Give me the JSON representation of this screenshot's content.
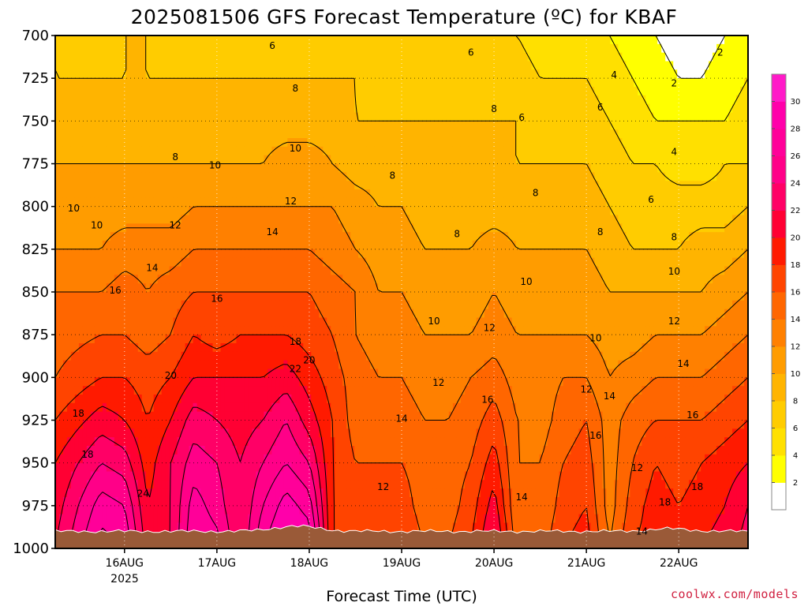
{
  "chart_data": {
    "type": "heatmap",
    "title": "2025081506 GFS Forecast Temperature (ºC) for KBAF",
    "xlabel": "Forecast Time (UTC)",
    "ylabel": "",
    "credit": "coolwx.com/models",
    "x_ticks": [
      "16AUG",
      "17AUG",
      "18AUG",
      "19AUG",
      "20AUG",
      "21AUG",
      "22AUG"
    ],
    "x_tick_year": "2025",
    "y_ticks": [
      "700",
      "725",
      "750",
      "775",
      "800",
      "825",
      "850",
      "875",
      "900",
      "925",
      "950",
      "975",
      "1000"
    ],
    "y_range_hpa": [
      1000,
      700
    ],
    "x_range_days": [
      15.25,
      22.75
    ],
    "grid": true,
    "colorbar_ticks": [
      "2",
      "4",
      "6",
      "8",
      "10",
      "12",
      "14",
      "16",
      "18",
      "20",
      "22",
      "24",
      "26",
      "28",
      "30"
    ],
    "colorbar_colors": [
      "#ffffff",
      "#ffff00",
      "#ffe000",
      "#ffcc00",
      "#ffb400",
      "#ff9c00",
      "#ff8000",
      "#ff6600",
      "#ff4400",
      "#ff1a00",
      "#ff0033",
      "#ff0066",
      "#ff0088",
      "#ff0099",
      "#ff00aa",
      "#ff1ac8"
    ],
    "surface_color": "#9a5a38",
    "temperature_profile": {
      "pressure_levels_hpa": [
        700,
        725,
        750,
        775,
        800,
        825,
        850,
        875,
        900,
        925,
        950,
        975,
        1000
      ],
      "times_days": [
        15.25,
        15.75,
        16.0,
        16.25,
        16.5,
        16.75,
        17.0,
        17.25,
        17.5,
        17.75,
        18.0,
        18.25,
        18.5,
        18.75,
        19.0,
        19.25,
        19.5,
        19.75,
        20.0,
        20.25,
        20.5,
        20.75,
        21.0,
        21.25,
        21.5,
        21.75,
        22.0,
        22.25,
        22.5,
        22.75
      ],
      "temps_c": [
        [
          8,
          8,
          9,
          10,
          11,
          12,
          14,
          15,
          16,
          18,
          20,
          21,
          22
        ],
        [
          7,
          8,
          9,
          10,
          11,
          12,
          14,
          16,
          18,
          21,
          24,
          27,
          29
        ],
        [
          8,
          8,
          9,
          10,
          11,
          13,
          15,
          16,
          18,
          20,
          23,
          26,
          28
        ],
        [
          8,
          8,
          9,
          10,
          11,
          13,
          14,
          15,
          17,
          18,
          19,
          20,
          21
        ],
        [
          7,
          8,
          9,
          10,
          11,
          13,
          15,
          16,
          18,
          20,
          22,
          22,
          22
        ],
        [
          7,
          8,
          9,
          10,
          12,
          14,
          16,
          18,
          20,
          23,
          25,
          27,
          28
        ],
        [
          7,
          8,
          9,
          10,
          12,
          14,
          16,
          17,
          20,
          22,
          24,
          25,
          27
        ],
        [
          7,
          8,
          9,
          10,
          12,
          14,
          16,
          18,
          20,
          21,
          22,
          22,
          22
        ],
        [
          7,
          8,
          9,
          10,
          12,
          14,
          16,
          18,
          20,
          22,
          24,
          26,
          28
        ],
        [
          7,
          8,
          9,
          11,
          12,
          14,
          16,
          18,
          21,
          24,
          26,
          29,
          31
        ],
        [
          7,
          8,
          9,
          11,
          12,
          14,
          16,
          17,
          19,
          21,
          24,
          27,
          30
        ],
        [
          7,
          8,
          9,
          10,
          12,
          13,
          15,
          16,
          17,
          18,
          18,
          18,
          18
        ],
        [
          7,
          8,
          8,
          9,
          11,
          12,
          14,
          14,
          15,
          15,
          16,
          17,
          17
        ],
        [
          6,
          7,
          8,
          9,
          10,
          11,
          12,
          13,
          14,
          15,
          16,
          16,
          17
        ],
        [
          6,
          7,
          8,
          9,
          10,
          11,
          12,
          13,
          14,
          15,
          16,
          17,
          18
        ],
        [
          6,
          7,
          8,
          8,
          9,
          10,
          11,
          12,
          13,
          14,
          15,
          15,
          16
        ],
        [
          6,
          7,
          8,
          8,
          9,
          10,
          11,
          12,
          13,
          14,
          15,
          15,
          16
        ],
        [
          6,
          7,
          8,
          8,
          9,
          10,
          11,
          12,
          14,
          15,
          16,
          17,
          18
        ],
        [
          6,
          7,
          8,
          8,
          9,
          11,
          12,
          13,
          15,
          17,
          19,
          21,
          23
        ],
        [
          6,
          7,
          8,
          8,
          9,
          10,
          11,
          12,
          13,
          14,
          14,
          14,
          15
        ],
        [
          5,
          6,
          7,
          8,
          9,
          10,
          11,
          12,
          13,
          13,
          14,
          14,
          15
        ],
        [
          5,
          6,
          7,
          8,
          9,
          10,
          11,
          12,
          14,
          15,
          16,
          17,
          18
        ],
        [
          5,
          6,
          7,
          8,
          9,
          10,
          11,
          12,
          14,
          16,
          17,
          18,
          19
        ],
        [
          4,
          5,
          6,
          7,
          8,
          9,
          10,
          11,
          12,
          13,
          13,
          13,
          14
        ],
        [
          3,
          4,
          5,
          6,
          7,
          8,
          10,
          11,
          13,
          15,
          16,
          17,
          18
        ],
        [
          2,
          3,
          4,
          6,
          7,
          8,
          10,
          12,
          14,
          16,
          18,
          19,
          19
        ],
        [
          1,
          2,
          4,
          5,
          7,
          8,
          10,
          12,
          14,
          16,
          17,
          18,
          18
        ],
        [
          1,
          2,
          4,
          5,
          7,
          9,
          10,
          12,
          14,
          16,
          18,
          19,
          20
        ],
        [
          2,
          3,
          4,
          6,
          7,
          9,
          11,
          13,
          15,
          17,
          19,
          20,
          21
        ],
        [
          3,
          4,
          5,
          6,
          8,
          10,
          12,
          14,
          16,
          18,
          20,
          22,
          23
        ]
      ]
    },
    "contour_labels": [
      {
        "text": "6",
        "day": 17.6,
        "hpa": 706
      },
      {
        "text": "6",
        "day": 19.75,
        "hpa": 710
      },
      {
        "text": "2",
        "day": 22.45,
        "hpa": 710
      },
      {
        "text": "4",
        "day": 21.3,
        "hpa": 723
      },
      {
        "text": "2",
        "day": 21.95,
        "hpa": 728
      },
      {
        "text": "8",
        "day": 17.85,
        "hpa": 731
      },
      {
        "text": "6",
        "day": 21.15,
        "hpa": 742
      },
      {
        "text": "8",
        "day": 20.0,
        "hpa": 743
      },
      {
        "text": "6",
        "day": 20.3,
        "hpa": 748
      },
      {
        "text": "10",
        "day": 17.85,
        "hpa": 766
      },
      {
        "text": "8",
        "day": 16.55,
        "hpa": 771
      },
      {
        "text": "4",
        "day": 21.95,
        "hpa": 768
      },
      {
        "text": "10",
        "day": 16.98,
        "hpa": 776
      },
      {
        "text": "8",
        "day": 18.9,
        "hpa": 782
      },
      {
        "text": "8",
        "day": 20.45,
        "hpa": 792
      },
      {
        "text": "6",
        "day": 21.7,
        "hpa": 796
      },
      {
        "text": "12",
        "day": 17.8,
        "hpa": 797
      },
      {
        "text": "10",
        "day": 15.45,
        "hpa": 801
      },
      {
        "text": "10",
        "day": 15.7,
        "hpa": 811
      },
      {
        "text": "12",
        "day": 16.55,
        "hpa": 811
      },
      {
        "text": "8",
        "day": 21.15,
        "hpa": 815
      },
      {
        "text": "8",
        "day": 19.6,
        "hpa": 816
      },
      {
        "text": "8",
        "day": 21.95,
        "hpa": 818
      },
      {
        "text": "14",
        "day": 17.6,
        "hpa": 815
      },
      {
        "text": "14",
        "day": 16.3,
        "hpa": 836
      },
      {
        "text": "10",
        "day": 21.95,
        "hpa": 838
      },
      {
        "text": "10",
        "day": 20.35,
        "hpa": 844
      },
      {
        "text": "16",
        "day": 15.9,
        "hpa": 849
      },
      {
        "text": "16",
        "day": 17.0,
        "hpa": 854
      },
      {
        "text": "10",
        "day": 19.35,
        "hpa": 867
      },
      {
        "text": "12",
        "day": 21.95,
        "hpa": 867
      },
      {
        "text": "12",
        "day": 19.95,
        "hpa": 871
      },
      {
        "text": "10",
        "day": 21.1,
        "hpa": 877
      },
      {
        "text": "18",
        "day": 17.85,
        "hpa": 879
      },
      {
        "text": "20",
        "day": 18.0,
        "hpa": 890
      },
      {
        "text": "22",
        "day": 17.85,
        "hpa": 895
      },
      {
        "text": "14",
        "day": 22.05,
        "hpa": 892
      },
      {
        "text": "20",
        "day": 16.5,
        "hpa": 899
      },
      {
        "text": "12",
        "day": 19.4,
        "hpa": 903
      },
      {
        "text": "12",
        "day": 21.0,
        "hpa": 907
      },
      {
        "text": "14",
        "day": 21.25,
        "hpa": 911
      },
      {
        "text": "16",
        "day": 19.93,
        "hpa": 913
      },
      {
        "text": "18",
        "day": 15.5,
        "hpa": 921
      },
      {
        "text": "14",
        "day": 19.0,
        "hpa": 924
      },
      {
        "text": "16",
        "day": 22.15,
        "hpa": 922
      },
      {
        "text": "16",
        "day": 21.1,
        "hpa": 934
      },
      {
        "text": "18",
        "day": 15.6,
        "hpa": 945
      },
      {
        "text": "12",
        "day": 21.55,
        "hpa": 953
      },
      {
        "text": "24",
        "day": 16.2,
        "hpa": 968
      },
      {
        "text": "12",
        "day": 18.8,
        "hpa": 964
      },
      {
        "text": "18",
        "day": 22.2,
        "hpa": 964
      },
      {
        "text": "14",
        "day": 20.3,
        "hpa": 970
      },
      {
        "text": "18",
        "day": 21.85,
        "hpa": 973
      },
      {
        "text": "14",
        "day": 21.6,
        "hpa": 990
      }
    ]
  }
}
